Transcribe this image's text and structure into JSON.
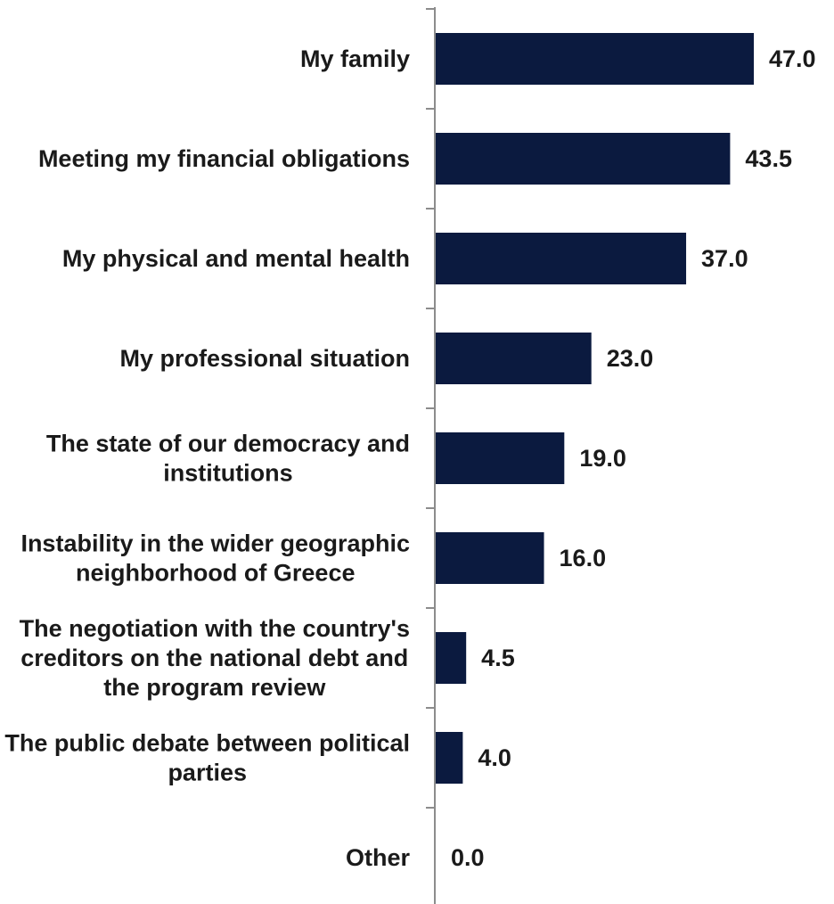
{
  "chart_data": {
    "type": "bar",
    "orientation": "horizontal",
    "categories": [
      [
        "My family"
      ],
      [
        "Meeting my financial obligations"
      ],
      [
        "My physical and mental health"
      ],
      [
        "My professional situation"
      ],
      [
        "The state of our democracy and",
        "institutions"
      ],
      [
        "Instability in the wider geographic",
        "neighborhood of Greece"
      ],
      [
        "The negotiation with the country's",
        "creditors on the national debt and",
        "the program review"
      ],
      [
        "The public debate between political",
        "parties"
      ],
      [
        "Other"
      ]
    ],
    "values": [
      47.0,
      43.5,
      37.0,
      23.0,
      19.0,
      16.0,
      4.5,
      4.0,
      0.0
    ],
    "value_labels": [
      "47.0",
      "43.5",
      "37.0",
      "23.0",
      "19.0",
      "16.0",
      "4.5",
      "4.0",
      "0.0"
    ],
    "title": "",
    "xlabel": "",
    "ylabel": "",
    "xlim": [
      0,
      60
    ],
    "grid": false,
    "legend": "none",
    "bar_color": "#0b1a3f"
  }
}
